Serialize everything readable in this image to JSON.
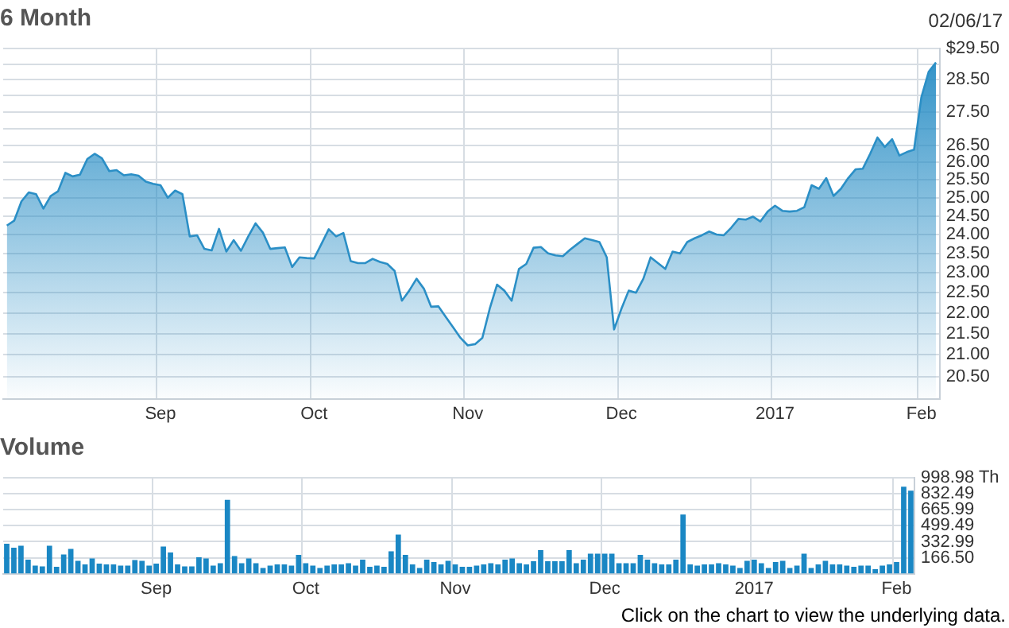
{
  "chart_data": [
    {
      "type": "area",
      "title": "6 Month",
      "annotations": [
        "02/06/17"
      ],
      "categories": [
        null,
        null,
        null,
        null,
        null,
        null,
        null,
        null,
        null,
        null,
        null,
        null,
        null,
        null,
        null,
        null,
        null,
        null,
        null,
        null,
        null,
        "Sep",
        null,
        null,
        null,
        null,
        null,
        null,
        null,
        null,
        null,
        null,
        null,
        null,
        null,
        null,
        null,
        null,
        null,
        null,
        null,
        null,
        "Oct",
        null,
        null,
        null,
        null,
        null,
        null,
        null,
        null,
        null,
        null,
        null,
        null,
        null,
        null,
        null,
        null,
        null,
        null,
        null,
        null,
        "Nov",
        null,
        null,
        null,
        null,
        null,
        null,
        null,
        null,
        null,
        null,
        null,
        null,
        null,
        null,
        null,
        null,
        null,
        null,
        null,
        null,
        "Dec",
        null,
        null,
        null,
        null,
        null,
        null,
        null,
        null,
        null,
        null,
        null,
        null,
        null,
        null,
        null,
        null,
        null,
        null,
        null,
        null,
        "2017",
        null,
        null,
        null,
        null,
        null,
        null,
        null,
        null,
        null,
        null,
        null,
        null,
        null,
        null,
        null,
        null,
        null,
        null,
        null,
        "Feb",
        null,
        null
      ],
      "series": [
        {
          "color": "#2b8fc6",
          "values": [
            24.24,
            24.37,
            24.9,
            25.15,
            25.1,
            24.7,
            25.05,
            25.18,
            25.7,
            25.6,
            25.65,
            26.1,
            26.25,
            26.12,
            25.75,
            25.78,
            25.63,
            25.66,
            25.62,
            25.45,
            25.39,
            25.35,
            25.0,
            25.2,
            25.1,
            23.95,
            23.98,
            23.62,
            23.58,
            24.15,
            23.55,
            23.85,
            23.57,
            23.95,
            24.3,
            24.05,
            23.62,
            23.64,
            23.66,
            23.15,
            23.4,
            23.38,
            23.37,
            23.75,
            24.14,
            23.95,
            24.04,
            23.3,
            23.25,
            23.25,
            23.36,
            23.28,
            23.23,
            23.05,
            22.3,
            22.55,
            22.85,
            22.6,
            22.15,
            22.16,
            21.9,
            21.65,
            21.4,
            21.22,
            21.25,
            21.4,
            22.1,
            22.7,
            22.55,
            22.3,
            23.1,
            23.23,
            23.65,
            23.67,
            23.5,
            23.45,
            23.43,
            23.6,
            23.75,
            23.9,
            23.85,
            23.8,
            23.4,
            21.6,
            22.1,
            22.55,
            22.5,
            22.85,
            23.4,
            23.25,
            23.1,
            23.55,
            23.5,
            23.8,
            23.9,
            23.98,
            24.08,
            24.0,
            23.98,
            24.18,
            24.42,
            24.4,
            24.48,
            24.35,
            24.62,
            24.78,
            24.64,
            24.62,
            24.64,
            24.74,
            25.35,
            25.25,
            25.55,
            25.05,
            25.25,
            25.55,
            25.8,
            25.82,
            26.25,
            26.73,
            26.45,
            26.68,
            26.2,
            26.3,
            26.37,
            27.95,
            28.75,
            29.05
          ]
        }
      ],
      "ylim": [
        20,
        29.5
      ],
      "yticks": [
        {
          "value": 29.5,
          "label": "$29.50"
        },
        {
          "value": 29,
          "label": null
        },
        {
          "value": 28.5,
          "label": "28.50"
        },
        {
          "value": 28,
          "label": null
        },
        {
          "value": 27.5,
          "label": "27.50"
        },
        {
          "value": 27,
          "label": null
        },
        {
          "value": 26.5,
          "label": "26.50"
        },
        {
          "value": 26,
          "label": "26.00"
        },
        {
          "value": 25.5,
          "label": "25.50"
        },
        {
          "value": 25,
          "label": "25.00"
        },
        {
          "value": 24.5,
          "label": "24.50"
        },
        {
          "value": 24,
          "label": "24.00"
        },
        {
          "value": 23.5,
          "label": "23.50"
        },
        {
          "value": 23,
          "label": "23.00"
        },
        {
          "value": 22.5,
          "label": "22.50"
        },
        {
          "value": 22,
          "label": "22.00"
        },
        {
          "value": 21.5,
          "label": "21.50"
        },
        {
          "value": 21,
          "label": "21.00"
        },
        {
          "value": 20.5,
          "label": "20.50"
        }
      ],
      "log": "y",
      "grid": true
    },
    {
      "type": "bar",
      "title": "Volume",
      "annotations": [
        "Click on the chart to view the underlying data."
      ],
      "categories": [
        null,
        null,
        null,
        null,
        null,
        null,
        null,
        null,
        null,
        null,
        null,
        null,
        null,
        null,
        null,
        null,
        null,
        null,
        null,
        null,
        null,
        "Sep",
        null,
        null,
        null,
        null,
        null,
        null,
        null,
        null,
        null,
        null,
        null,
        null,
        null,
        null,
        null,
        null,
        null,
        null,
        null,
        null,
        "Oct",
        null,
        null,
        null,
        null,
        null,
        null,
        null,
        null,
        null,
        null,
        null,
        null,
        null,
        null,
        null,
        null,
        null,
        null,
        null,
        null,
        "Nov",
        null,
        null,
        null,
        null,
        null,
        null,
        null,
        null,
        null,
        null,
        null,
        null,
        null,
        null,
        null,
        null,
        null,
        null,
        null,
        null,
        "Dec",
        null,
        null,
        null,
        null,
        null,
        null,
        null,
        null,
        null,
        null,
        null,
        null,
        null,
        null,
        null,
        null,
        null,
        null,
        null,
        null,
        "2017",
        null,
        null,
        null,
        null,
        null,
        null,
        null,
        null,
        null,
        null,
        null,
        null,
        null,
        null,
        null,
        null,
        null,
        null,
        null,
        "Feb",
        null,
        null
      ],
      "color": "#1a87c4",
      "values": [
        312,
        271,
        291,
        146,
        83,
        75,
        291,
        71,
        200,
        258,
        133,
        96,
        158,
        104,
        96,
        96,
        83,
        83,
        142,
        133,
        83,
        104,
        283,
        221,
        96,
        75,
        75,
        171,
        158,
        83,
        108,
        770,
        183,
        108,
        158,
        108,
        58,
        83,
        96,
        96,
        83,
        196,
        108,
        83,
        58,
        83,
        96,
        96,
        108,
        83,
        146,
        71,
        83,
        71,
        233,
        408,
        196,
        96,
        58,
        146,
        121,
        96,
        133,
        96,
        71,
        71,
        83,
        96,
        108,
        96,
        146,
        158,
        108,
        96,
        129,
        246,
        129,
        129,
        129,
        246,
        108,
        146,
        208,
        208,
        208,
        208,
        108,
        108,
        108,
        196,
        146,
        108,
        96,
        96,
        146,
        616,
        96,
        83,
        96,
        96,
        108,
        96,
        83,
        58,
        133,
        146,
        108,
        58,
        121,
        133,
        58,
        83,
        208,
        58,
        96,
        133,
        96,
        96,
        83,
        71,
        83,
        83,
        46,
        83,
        96,
        121,
        907,
        866
      ],
      "ylim": [
        0,
        998.98
      ],
      "yticks": [
        {
          "value": 998.98,
          "label": "998.98 Th"
        },
        832.49,
        665.99,
        499.49,
        332.99,
        {
          "value": 166.5,
          "label": "166.50"
        }
      ],
      "grid": true
    }
  ]
}
